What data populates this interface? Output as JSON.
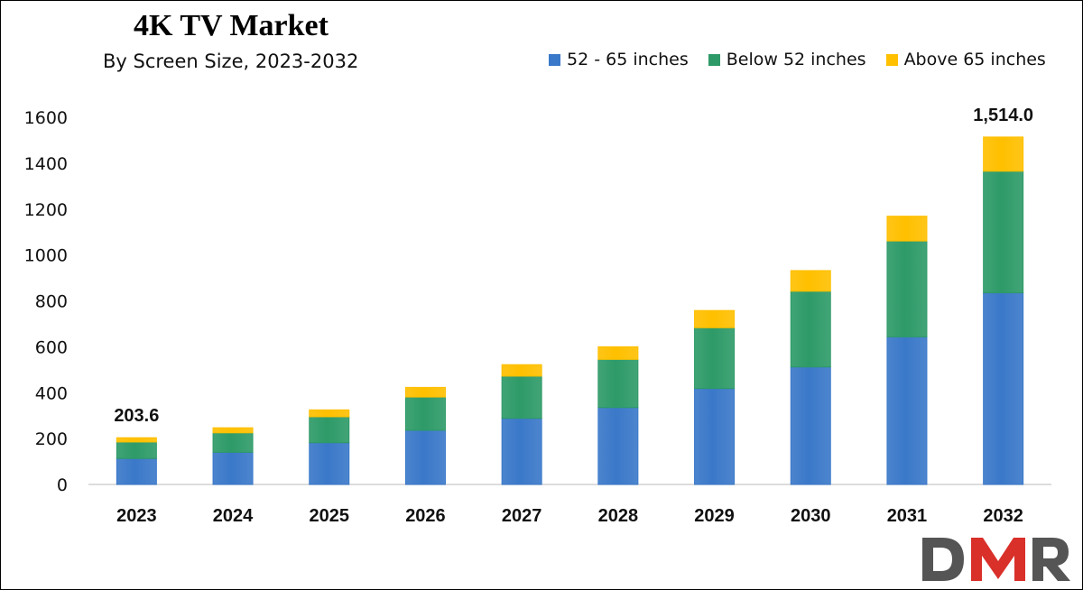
{
  "chart_data": {
    "type": "bar",
    "stacked": true,
    "title": "4K TV Market",
    "subtitle": "By Screen Size, 2023-2032",
    "categories": [
      "2023",
      "2024",
      "2025",
      "2026",
      "2027",
      "2028",
      "2029",
      "2030",
      "2031",
      "2032"
    ],
    "series": [
      {
        "name": "52 - 65 inches",
        "color": "#3a78c9",
        "values": [
          113,
          140,
          182,
          236,
          288,
          335,
          418,
          512,
          643,
          835
        ]
      },
      {
        "name": "Below 52 inches",
        "color": "#2e9a68",
        "values": [
          72,
          85,
          113,
          145,
          184,
          210,
          265,
          330,
          418,
          530
        ]
      },
      {
        "name": "Above 65 inches",
        "color": "#ffc000",
        "values": [
          18.6,
          22,
          30,
          42,
          50,
          55,
          75,
          90,
          108,
          149
        ]
      }
    ],
    "data_labels": [
      {
        "category": "2023",
        "text": "203.6"
      },
      {
        "category": "2032",
        "text": "1,514.0"
      }
    ],
    "ylim": [
      0,
      1600
    ],
    "yticks": [
      0,
      200,
      400,
      600,
      800,
      1000,
      1200,
      1400,
      1600
    ],
    "xlabel": "",
    "ylabel": "",
    "grid": false,
    "legend_position": "top-right"
  },
  "logo": {
    "text": "DMR",
    "colors": [
      "#555555",
      "#d9302a",
      "#555555"
    ]
  }
}
